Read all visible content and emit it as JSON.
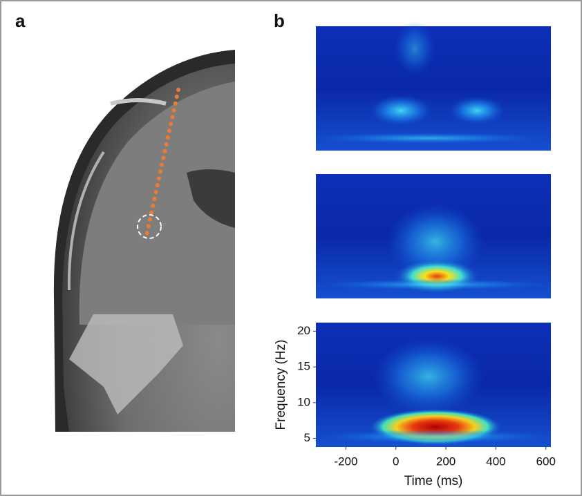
{
  "panels": [
    {
      "label": "a"
    },
    {
      "label": "b"
    }
  ],
  "spectrogram_axes": {
    "ylabel": "Frequency (Hz)",
    "yticks": [
      5,
      10,
      15,
      20
    ],
    "ylim": [
      3.8,
      21.2
    ],
    "xlabel": "Time (ms)",
    "xticks": [
      -200,
      0,
      200,
      400,
      600
    ],
    "xlim": [
      -320,
      620
    ]
  }
}
